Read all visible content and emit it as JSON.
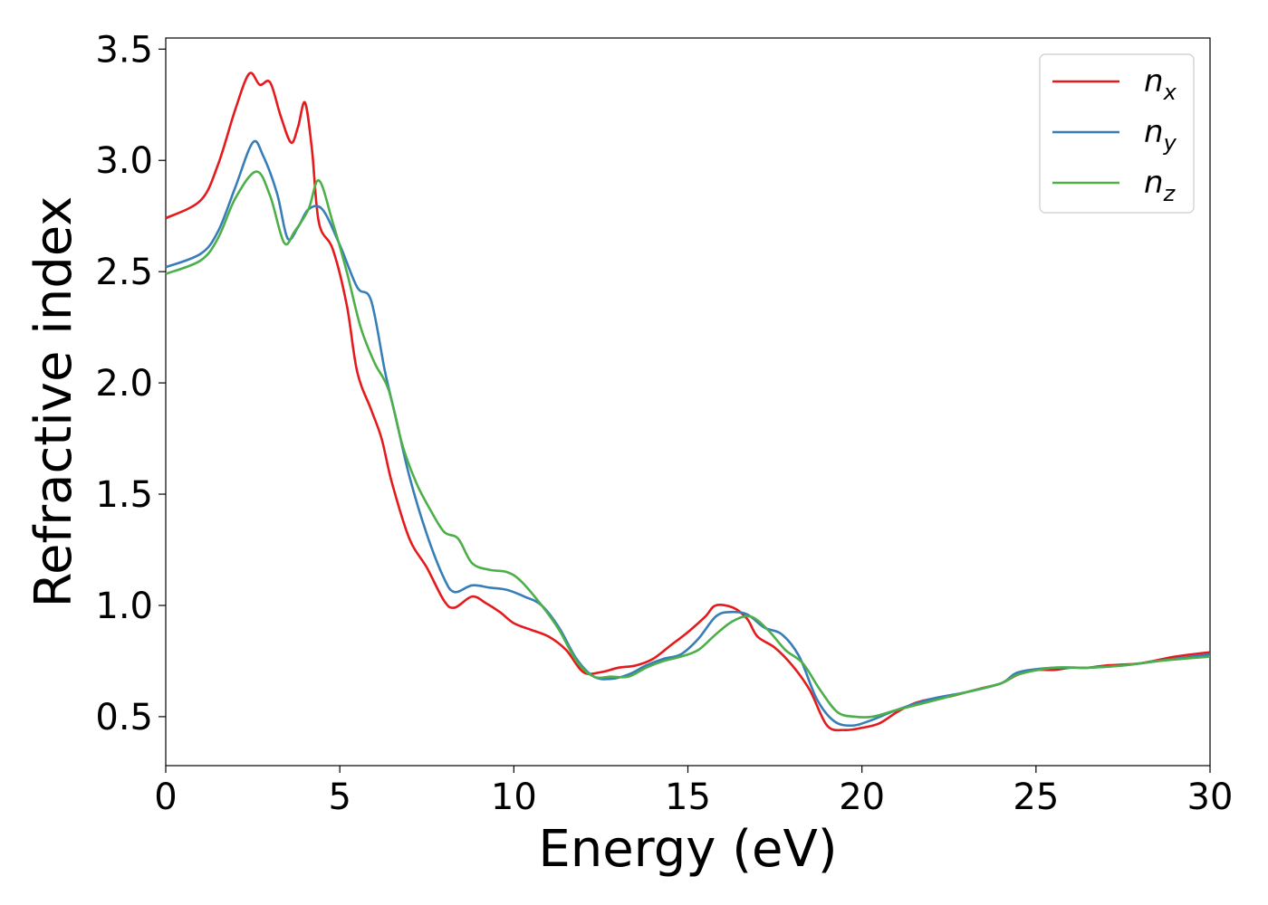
{
  "chart_data": {
    "type": "line",
    "xlabel": "Energy (eV)",
    "ylabel": "Refractive index",
    "xlim": [
      0,
      30
    ],
    "ylim": [
      0.28,
      3.55
    ],
    "xticks": [
      "0",
      "5",
      "10",
      "15",
      "20",
      "25",
      "30"
    ],
    "yticks": [
      "0.5",
      "1.0",
      "1.5",
      "2.0",
      "2.5",
      "3.0",
      "3.5"
    ],
    "grid": false,
    "legend_position": "top-right",
    "series": [
      {
        "name": "n_x",
        "label_base": "n",
        "label_sub": "x",
        "color": "#e41a1c",
        "points": [
          [
            0,
            2.74
          ],
          [
            1.0,
            2.82
          ],
          [
            1.5,
            2.98
          ],
          [
            2.0,
            3.23
          ],
          [
            2.4,
            3.39
          ],
          [
            2.7,
            3.34
          ],
          [
            3.0,
            3.35
          ],
          [
            3.3,
            3.2
          ],
          [
            3.6,
            3.08
          ],
          [
            3.8,
            3.15
          ],
          [
            4.0,
            3.26
          ],
          [
            4.2,
            3.05
          ],
          [
            4.4,
            2.72
          ],
          [
            4.8,
            2.6
          ],
          [
            5.2,
            2.35
          ],
          [
            5.5,
            2.05
          ],
          [
            5.9,
            1.88
          ],
          [
            6.2,
            1.75
          ],
          [
            6.5,
            1.55
          ],
          [
            7.0,
            1.3
          ],
          [
            7.5,
            1.17
          ],
          [
            8.0,
            1.02
          ],
          [
            8.3,
            0.99
          ],
          [
            8.8,
            1.04
          ],
          [
            9.2,
            1.01
          ],
          [
            9.6,
            0.97
          ],
          [
            10.0,
            0.92
          ],
          [
            10.5,
            0.89
          ],
          [
            11.0,
            0.86
          ],
          [
            11.5,
            0.8
          ],
          [
            12.0,
            0.7
          ],
          [
            12.5,
            0.7
          ],
          [
            13.0,
            0.72
          ],
          [
            13.5,
            0.73
          ],
          [
            14.0,
            0.76
          ],
          [
            14.5,
            0.82
          ],
          [
            15.0,
            0.88
          ],
          [
            15.5,
            0.95
          ],
          [
            15.8,
            1.0
          ],
          [
            16.3,
            0.99
          ],
          [
            16.7,
            0.94
          ],
          [
            17.0,
            0.86
          ],
          [
            17.5,
            0.81
          ],
          [
            18.0,
            0.73
          ],
          [
            18.5,
            0.62
          ],
          [
            19.0,
            0.46
          ],
          [
            19.5,
            0.44
          ],
          [
            20.0,
            0.45
          ],
          [
            20.5,
            0.47
          ],
          [
            21.0,
            0.52
          ],
          [
            21.5,
            0.56
          ],
          [
            22.0,
            0.58
          ],
          [
            22.5,
            0.59
          ],
          [
            23.0,
            0.61
          ],
          [
            23.5,
            0.63
          ],
          [
            24.0,
            0.65
          ],
          [
            24.5,
            0.69
          ],
          [
            25.0,
            0.71
          ],
          [
            25.5,
            0.71
          ],
          [
            26.0,
            0.72
          ],
          [
            26.5,
            0.72
          ],
          [
            27.0,
            0.73
          ],
          [
            28.0,
            0.74
          ],
          [
            29.0,
            0.77
          ],
          [
            30.0,
            0.79
          ]
        ]
      },
      {
        "name": "n_y",
        "label_base": "n",
        "label_sub": "y",
        "color": "#377eb8",
        "points": [
          [
            0,
            2.52
          ],
          [
            1.0,
            2.58
          ],
          [
            1.5,
            2.68
          ],
          [
            2.0,
            2.88
          ],
          [
            2.5,
            3.08
          ],
          [
            2.8,
            3.02
          ],
          [
            3.2,
            2.85
          ],
          [
            3.5,
            2.65
          ],
          [
            3.8,
            2.7
          ],
          [
            4.1,
            2.78
          ],
          [
            4.5,
            2.78
          ],
          [
            5.0,
            2.62
          ],
          [
            5.5,
            2.43
          ],
          [
            5.9,
            2.37
          ],
          [
            6.3,
            2.05
          ],
          [
            6.6,
            1.85
          ],
          [
            7.0,
            1.58
          ],
          [
            7.5,
            1.32
          ],
          [
            8.0,
            1.12
          ],
          [
            8.3,
            1.06
          ],
          [
            8.8,
            1.09
          ],
          [
            9.3,
            1.08
          ],
          [
            9.8,
            1.07
          ],
          [
            10.3,
            1.04
          ],
          [
            10.8,
            1.0
          ],
          [
            11.3,
            0.9
          ],
          [
            11.8,
            0.76
          ],
          [
            12.3,
            0.68
          ],
          [
            12.8,
            0.67
          ],
          [
            13.3,
            0.69
          ],
          [
            13.8,
            0.73
          ],
          [
            14.3,
            0.76
          ],
          [
            14.8,
            0.78
          ],
          [
            15.3,
            0.85
          ],
          [
            15.8,
            0.95
          ],
          [
            16.2,
            0.97
          ],
          [
            16.7,
            0.96
          ],
          [
            17.2,
            0.9
          ],
          [
            17.7,
            0.87
          ],
          [
            18.2,
            0.77
          ],
          [
            18.7,
            0.58
          ],
          [
            19.2,
            0.48
          ],
          [
            19.7,
            0.46
          ],
          [
            20.2,
            0.48
          ],
          [
            21.0,
            0.53
          ],
          [
            22.0,
            0.58
          ],
          [
            23.0,
            0.61
          ],
          [
            24.0,
            0.65
          ],
          [
            24.5,
            0.7
          ],
          [
            25.5,
            0.72
          ],
          [
            26.5,
            0.72
          ],
          [
            27.5,
            0.73
          ],
          [
            28.5,
            0.75
          ],
          [
            30.0,
            0.78
          ]
        ]
      },
      {
        "name": "n_z",
        "label_base": "n",
        "label_sub": "z",
        "color": "#4daf4a",
        "points": [
          [
            0,
            2.49
          ],
          [
            1.0,
            2.55
          ],
          [
            1.5,
            2.65
          ],
          [
            2.0,
            2.83
          ],
          [
            2.6,
            2.95
          ],
          [
            3.0,
            2.84
          ],
          [
            3.4,
            2.63
          ],
          [
            3.7,
            2.68
          ],
          [
            4.1,
            2.78
          ],
          [
            4.4,
            2.91
          ],
          [
            4.8,
            2.72
          ],
          [
            5.2,
            2.5
          ],
          [
            5.6,
            2.25
          ],
          [
            6.0,
            2.09
          ],
          [
            6.4,
            1.97
          ],
          [
            6.8,
            1.72
          ],
          [
            7.2,
            1.55
          ],
          [
            7.6,
            1.43
          ],
          [
            8.0,
            1.33
          ],
          [
            8.4,
            1.3
          ],
          [
            8.8,
            1.19
          ],
          [
            9.3,
            1.16
          ],
          [
            9.8,
            1.15
          ],
          [
            10.2,
            1.11
          ],
          [
            10.8,
            1.0
          ],
          [
            11.3,
            0.89
          ],
          [
            11.8,
            0.75
          ],
          [
            12.3,
            0.68
          ],
          [
            12.8,
            0.68
          ],
          [
            13.3,
            0.68
          ],
          [
            13.8,
            0.72
          ],
          [
            14.3,
            0.75
          ],
          [
            14.8,
            0.77
          ],
          [
            15.3,
            0.8
          ],
          [
            15.8,
            0.87
          ],
          [
            16.3,
            0.93
          ],
          [
            16.8,
            0.95
          ],
          [
            17.3,
            0.89
          ],
          [
            17.8,
            0.8
          ],
          [
            18.3,
            0.74
          ],
          [
            18.8,
            0.62
          ],
          [
            19.3,
            0.52
          ],
          [
            19.8,
            0.5
          ],
          [
            20.3,
            0.5
          ],
          [
            21.0,
            0.53
          ],
          [
            22.0,
            0.57
          ],
          [
            23.0,
            0.61
          ],
          [
            24.0,
            0.65
          ],
          [
            24.5,
            0.69
          ],
          [
            25.5,
            0.72
          ],
          [
            26.5,
            0.72
          ],
          [
            27.5,
            0.73
          ],
          [
            28.5,
            0.75
          ],
          [
            30.0,
            0.77
          ]
        ]
      }
    ]
  }
}
